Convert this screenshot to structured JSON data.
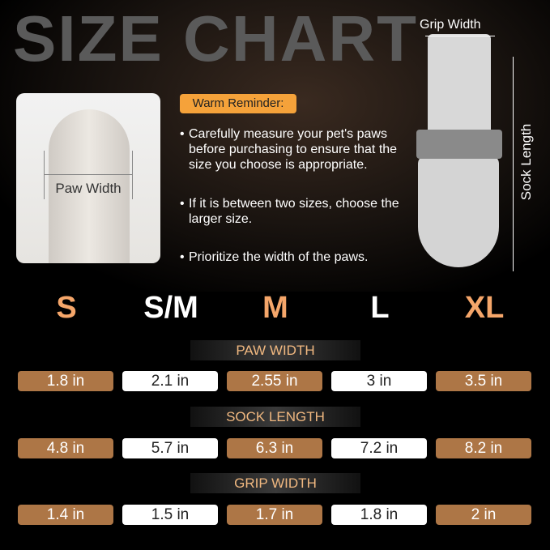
{
  "title": "SIZE CHART",
  "paw_label": "Paw Width",
  "grip_label": "Grip Width",
  "sock_label": "Sock Length",
  "reminder": {
    "badge": "Warm Reminder:",
    "bullets": [
      "Carefully measure your pet's paws before purchasing to ensure that the size you choose is appropriate.",
      "If it is between two sizes, choose the larger size.",
      "Prioritize the width of the paws."
    ]
  },
  "colors": {
    "accent": "#f5a66a",
    "cell_brown": "#ad7646",
    "badge": "#f5a23a",
    "title": "#5a5a5a"
  },
  "sizes": [
    "S",
    "S/M",
    "M",
    "L",
    "XL"
  ],
  "table": [
    {
      "header": "PAW WIDTH",
      "values": [
        "1.8 in",
        "2.1 in",
        "2.55 in",
        "3 in",
        "3.5 in"
      ]
    },
    {
      "header": "SOCK LENGTH",
      "values": [
        "4.8 in",
        "5.7 in",
        "6.3 in",
        "7.2 in",
        "8.2 in"
      ]
    },
    {
      "header": "GRIP WIDTH",
      "values": [
        "1.4 in",
        "1.5 in",
        "1.7 in",
        "1.8 in",
        "2 in"
      ]
    }
  ]
}
